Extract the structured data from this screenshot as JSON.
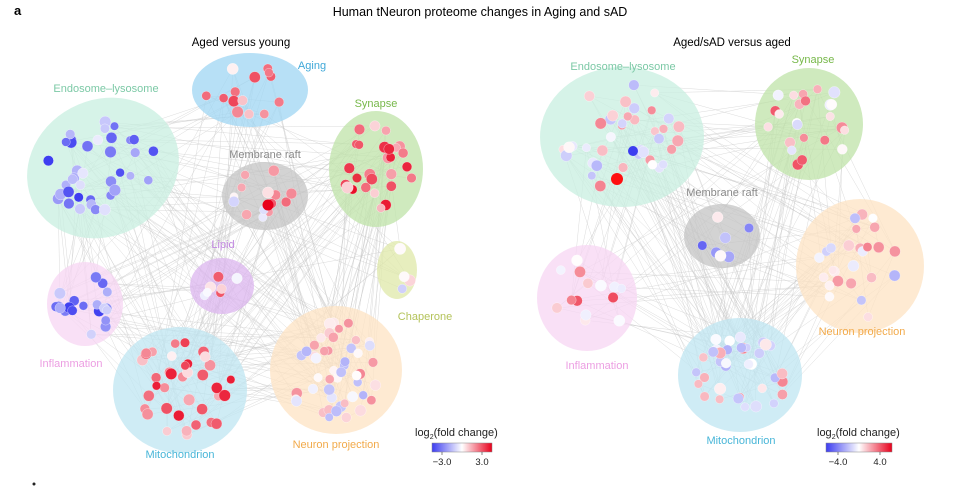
{
  "panel_letter": "a",
  "title": "Human tNeuron proteome changes in Aging and sAD",
  "panels": [
    {
      "subtitle": "Aged versus young",
      "clusters": [
        {
          "label": "Aging",
          "color": "#9fd6f3",
          "label_color": "#41a9d9"
        },
        {
          "label": "Endosome–lysosome",
          "color": "#c8efe0",
          "label_color": "#7cc9a6"
        },
        {
          "label": "Synapse",
          "color": "#bfe3a8",
          "label_color": "#77b84a"
        },
        {
          "label": "Membrane raft",
          "color": "#c4c4c4",
          "label_color": "#8a8a8a"
        },
        {
          "label": "Lipid",
          "color": "#dcb6ef",
          "label_color": "#c187e0"
        },
        {
          "label": "Chaperone",
          "color": "#dfe8a8",
          "label_color": "#b4c35a"
        },
        {
          "label": "Inflammation",
          "color": "#f7d5f3",
          "label_color": "#ec9ee2"
        },
        {
          "label": "Mitochondrion",
          "color": "#bfe6f2",
          "label_color": "#48b6d8"
        },
        {
          "label": "Neuron projection",
          "color": "#fde3c3",
          "label_color": "#f2aa4a"
        }
      ],
      "legend": {
        "title_prefix": "log",
        "title_sub": "2",
        "title_suffix": "(fold change)",
        "min_label": "−3.0",
        "max_label": "3.0",
        "low_color": "#3c3cf0",
        "mid_color": "#ffffff",
        "high_color": "#e8001c"
      }
    },
    {
      "subtitle": "Aged/sAD versus aged",
      "clusters": [
        {
          "label": "Endosome–lysosome",
          "color": "#c8efe0",
          "label_color": "#7cc9a6"
        },
        {
          "label": "Synapse",
          "color": "#bfe3a8",
          "label_color": "#77b84a"
        },
        {
          "label": "Membrane raft",
          "color": "#c4c4c4",
          "label_color": "#8a8a8a"
        },
        {
          "label": "Neuron projection",
          "color": "#fde3c3",
          "label_color": "#f2aa4a"
        },
        {
          "label": "Inflammation",
          "color": "#f7d5f3",
          "label_color": "#ec9ee2"
        },
        {
          "label": "Mitochondrion",
          "color": "#bfe6f2",
          "label_color": "#48b6d8"
        }
      ],
      "legend": {
        "title_prefix": "log",
        "title_sub": "2",
        "title_suffix": "(fold change)",
        "min_label": "−4.0",
        "max_label": "4.0",
        "low_color": "#3c3cf0",
        "mid_color": "#ffffff",
        "high_color": "#e8001c"
      }
    }
  ],
  "colors": {
    "edge": "#c9c9c9",
    "node_text": "#333333"
  }
}
